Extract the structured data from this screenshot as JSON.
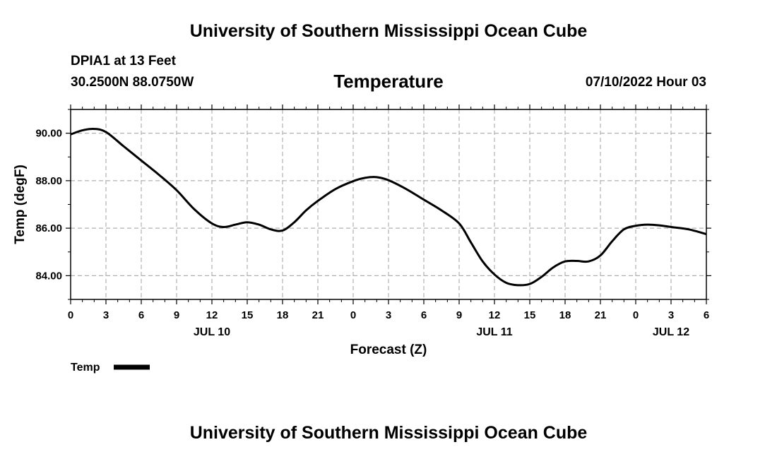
{
  "header": {
    "title": "University of Southern Mississippi Ocean Cube",
    "station": "DPIA1 at 13 Feet",
    "coords": "30.2500N  88.0750W",
    "variable": "Temperature",
    "run_time": "07/10/2022 Hour 03"
  },
  "footer": {
    "title": "University of Southern Mississippi Ocean Cube"
  },
  "legend": {
    "label": "Temp"
  },
  "colors": {
    "line": "#000000",
    "grid": "#b0b0b0",
    "background": "#ffffff"
  },
  "chart_data": {
    "type": "line",
    "title": "Temperature",
    "xlabel": "Forecast (Z)",
    "ylabel": "Temp (degF)",
    "xlim": [
      0,
      54
    ],
    "ylim": [
      83.0,
      91.0
    ],
    "x_ticks": [
      0,
      3,
      6,
      9,
      12,
      15,
      18,
      21,
      24,
      27,
      30,
      33,
      36,
      39,
      42,
      45,
      48,
      51,
      54
    ],
    "x_tick_labels": [
      "0",
      "3",
      "6",
      "9",
      "12",
      "15",
      "18",
      "21",
      "0",
      "3",
      "6",
      "9",
      "12",
      "15",
      "18",
      "21",
      "0",
      "3",
      "6"
    ],
    "date_labels": [
      {
        "x": 12,
        "label": "JUL 10"
      },
      {
        "x": 36,
        "label": "JUL 11"
      },
      {
        "x": 51,
        "label": "JUL 12"
      }
    ],
    "y_ticks": [
      84,
      86,
      88,
      90
    ],
    "y_tick_labels": [
      "84.00",
      "86.00",
      "88.00",
      "90.00"
    ],
    "grid": true,
    "series": [
      {
        "name": "Temp",
        "x": [
          0,
          1,
          2,
          3,
          4.5,
          6,
          7.5,
          9,
          10.5,
          12,
          13,
          14,
          15,
          16,
          17,
          18,
          19,
          20,
          21,
          22.5,
          24,
          25,
          26,
          27,
          28.5,
          30,
          31.5,
          33,
          34,
          35,
          36,
          37,
          38,
          39,
          40,
          41,
          42,
          43,
          44,
          45,
          46,
          47,
          48,
          49,
          50,
          51,
          52.5,
          54
        ],
        "values": [
          89.95,
          90.12,
          90.18,
          90.05,
          89.45,
          88.85,
          88.25,
          87.6,
          86.8,
          86.2,
          86.05,
          86.15,
          86.25,
          86.15,
          85.95,
          85.9,
          86.25,
          86.75,
          87.15,
          87.65,
          87.98,
          88.12,
          88.15,
          88.02,
          87.65,
          87.2,
          86.75,
          86.2,
          85.4,
          84.6,
          84.05,
          83.7,
          83.6,
          83.65,
          83.95,
          84.35,
          84.6,
          84.62,
          84.6,
          84.85,
          85.45,
          85.95,
          86.1,
          86.15,
          86.12,
          86.05,
          85.95,
          85.75
        ]
      }
    ]
  }
}
